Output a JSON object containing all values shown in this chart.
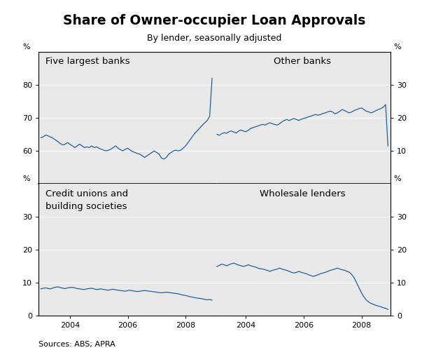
{
  "title": "Share of Owner-occupier Loan Approvals",
  "subtitle": "By lender, seasonally adjusted",
  "source": "Sources: ABS; APRA",
  "line_color": "#2060a0",
  "background_color": "#e8e8e8",
  "panel_titles": [
    "Five largest banks",
    "Other banks",
    "Credit unions and\nbuilding societies",
    "Wholesale lenders"
  ],
  "five_largest_banks": [
    64.0,
    64.3,
    64.8,
    64.5,
    64.2,
    63.8,
    63.3,
    62.8,
    62.2,
    61.8,
    62.0,
    62.5,
    62.0,
    61.5,
    61.0,
    61.5,
    62.0,
    61.5,
    61.0,
    61.2,
    61.0,
    61.5,
    61.0,
    61.2,
    60.8,
    60.5,
    60.2,
    60.0,
    60.2,
    60.5,
    61.0,
    61.5,
    60.8,
    60.3,
    60.0,
    60.5,
    60.8,
    60.2,
    59.8,
    59.5,
    59.2,
    59.0,
    58.5,
    58.0,
    58.5,
    59.0,
    59.5,
    60.0,
    59.5,
    59.0,
    57.8,
    57.5,
    58.0,
    59.0,
    59.5,
    60.0,
    60.2,
    60.0,
    60.2,
    60.8,
    61.5,
    62.5,
    63.5,
    64.5,
    65.5,
    66.2,
    67.0,
    67.8,
    68.5,
    69.2,
    70.5,
    82.0
  ],
  "other_banks": [
    15.0,
    14.7,
    15.2,
    15.5,
    15.3,
    15.8,
    16.0,
    15.7,
    15.4,
    16.0,
    16.3,
    16.0,
    15.8,
    16.2,
    16.8,
    17.0,
    17.3,
    17.5,
    17.8,
    18.0,
    17.8,
    18.2,
    18.5,
    18.2,
    18.0,
    17.8,
    18.2,
    18.8,
    19.2,
    19.5,
    19.2,
    19.5,
    19.8,
    19.5,
    19.2,
    19.6,
    19.8,
    20.0,
    20.3,
    20.5,
    20.8,
    21.0,
    20.8,
    21.0,
    21.3,
    21.5,
    21.8,
    22.0,
    21.8,
    21.2,
    21.5,
    22.0,
    22.5,
    22.2,
    21.8,
    21.5,
    21.8,
    22.2,
    22.5,
    22.8,
    23.0,
    22.5,
    22.0,
    21.8,
    21.5,
    21.8,
    22.2,
    22.5,
    22.8,
    23.2,
    24.0,
    11.5
  ],
  "credit_unions": [
    8.2,
    8.4,
    8.5,
    8.3,
    8.2,
    8.5,
    8.7,
    8.8,
    8.6,
    8.4,
    8.3,
    8.5,
    8.6,
    8.7,
    8.5,
    8.3,
    8.2,
    8.1,
    8.0,
    8.2,
    8.3,
    8.4,
    8.2,
    8.0,
    8.1,
    8.2,
    8.0,
    7.9,
    7.8,
    8.0,
    8.1,
    7.9,
    7.8,
    7.7,
    7.6,
    7.5,
    7.7,
    7.8,
    7.6,
    7.5,
    7.4,
    7.5,
    7.6,
    7.7,
    7.6,
    7.5,
    7.4,
    7.3,
    7.2,
    7.1,
    7.0,
    7.1,
    7.2,
    7.1,
    7.0,
    6.9,
    6.8,
    6.7,
    6.5,
    6.3,
    6.2,
    6.0,
    5.8,
    5.7,
    5.5,
    5.4,
    5.3,
    5.2,
    5.0,
    4.9,
    5.0,
    4.8
  ],
  "wholesale_lenders": [
    15.0,
    15.3,
    15.7,
    15.5,
    15.2,
    15.5,
    15.8,
    16.0,
    15.7,
    15.4,
    15.2,
    15.0,
    15.2,
    15.5,
    15.2,
    15.0,
    14.8,
    14.5,
    14.3,
    14.2,
    14.0,
    13.8,
    13.5,
    13.8,
    14.0,
    14.2,
    14.5,
    14.2,
    14.0,
    13.8,
    13.5,
    13.2,
    13.0,
    13.2,
    13.5,
    13.2,
    13.0,
    12.8,
    12.5,
    12.2,
    12.0,
    12.2,
    12.5,
    12.8,
    13.0,
    13.2,
    13.5,
    13.8,
    14.0,
    14.2,
    14.5,
    14.2,
    14.0,
    13.8,
    13.5,
    13.2,
    12.5,
    11.5,
    10.0,
    8.5,
    7.0,
    5.8,
    4.8,
    4.2,
    3.8,
    3.5,
    3.2,
    3.0,
    2.8,
    2.5,
    2.3,
    2.0
  ]
}
